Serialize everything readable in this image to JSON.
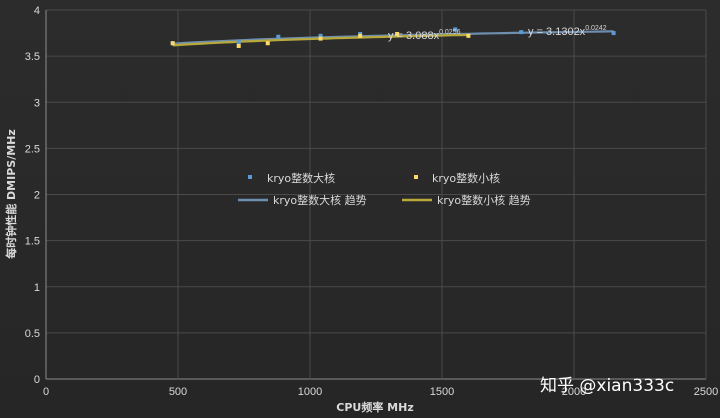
{
  "chart_data": {
    "type": "scatter",
    "title": "",
    "xlabel": "CPU频率 MHz",
    "ylabel": "每时钟性能 DMIPS/MHz",
    "xlim": [
      0,
      2500
    ],
    "ylim": [
      0,
      4
    ],
    "x_ticks": [
      "0",
      "500",
      "1000",
      "1500",
      "2000",
      "2500"
    ],
    "y_ticks": [
      "0",
      "0.5",
      "1",
      "1.5",
      "2",
      "2.5",
      "3",
      "3.5",
      "4"
    ],
    "grid": true,
    "series": [
      {
        "name": "kryo整数大核",
        "color": "#5b9bd5",
        "points": [
          [
            480,
            3.64
          ],
          [
            730,
            3.65
          ],
          [
            880,
            3.71
          ],
          [
            1040,
            3.72
          ],
          [
            1190,
            3.74
          ],
          [
            1550,
            3.79
          ],
          [
            1800,
            3.76
          ],
          [
            2150,
            3.75
          ]
        ]
      },
      {
        "name": "kryo整数小核",
        "color": "#ffd966",
        "points": [
          [
            480,
            3.64
          ],
          [
            730,
            3.61
          ],
          [
            840,
            3.64
          ],
          [
            1040,
            3.69
          ],
          [
            1190,
            3.72
          ],
          [
            1330,
            3.74
          ],
          [
            1600,
            3.72
          ]
        ]
      }
    ],
    "trendlines": [
      {
        "name": "kryo整数大核 趋势",
        "color": "#6f8fb0",
        "equation_prefix": "y = 3.1302x",
        "exponent": "0.0242",
        "a": 3.1302,
        "b": 0.0242,
        "x_range": [
          480,
          2150
        ]
      },
      {
        "name": "kryo整数小核 趋势",
        "color": "#b8a93a",
        "equation_prefix": "y = 3.088x",
        "exponent": "0.0256",
        "a": 3.088,
        "b": 0.0256,
        "x_range": [
          480,
          1600
        ]
      }
    ],
    "legend": {
      "placement": "center-left",
      "entries": [
        "kryo整数大核",
        "kryo整数小核",
        "kryo整数大核 趋势",
        "kryo整数小核 趋势"
      ]
    }
  },
  "watermark": "知乎 @xian333c"
}
